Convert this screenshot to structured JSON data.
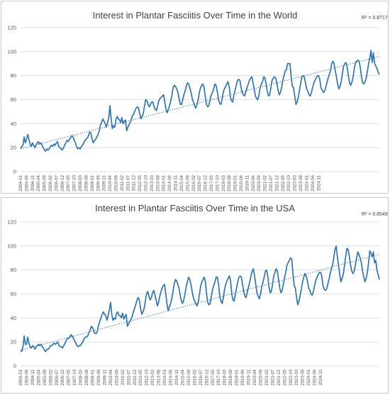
{
  "colors": {
    "series": "#2e75b6",
    "grid": "#d9d9d9",
    "text": "#595959"
  },
  "chart_data": [
    {
      "type": "line",
      "title": "Interest in Plantar Fasciitis Over Time in the World",
      "r2_label": "R² = 0.8717",
      "ylim": [
        0,
        120
      ],
      "yticks": [
        0,
        20,
        40,
        60,
        80,
        100,
        120
      ],
      "x_tick_labels": [
        "2004-01",
        "2004-06",
        "2004-11",
        "2005-04",
        "2005-09",
        "2006-02",
        "2006-07",
        "2006-12",
        "2007-05",
        "2007-10",
        "2008-03",
        "2008-08",
        "2009-01",
        "2009-06",
        "2009-11",
        "2010-04",
        "2010-09",
        "2011-02",
        "2011-07",
        "2011-12",
        "2012-05",
        "2012-10",
        "2013-03",
        "2013-08",
        "2014-01",
        "2014-06",
        "2014-11",
        "2015-04",
        "2015-09",
        "2016-02",
        "2016-07",
        "2016-12",
        "2017-05",
        "2017-10",
        "2018-03",
        "2018-08",
        "2019-01",
        "2019-06",
        "2019-11",
        "2020-04",
        "2020-09",
        "2021-02",
        "2021-07",
        "2021-12",
        "2022-05",
        "2022-10",
        "2023-03",
        "2023-08",
        "2024-01",
        "2024-06",
        "2024-11"
      ],
      "grid": true,
      "trendline": {
        "style": "dotted",
        "start": 19,
        "end": 96
      },
      "series": [
        {
          "x_start": "2004-01",
          "values": [
            19,
            21,
            22,
            29,
            24,
            27,
            31,
            27,
            23,
            21,
            24,
            22,
            20,
            22,
            24,
            25,
            23,
            24,
            22,
            20,
            18,
            17,
            19,
            18,
            19,
            21,
            22,
            21,
            23,
            22,
            24,
            25,
            21,
            20,
            19,
            18,
            20,
            22,
            24,
            26,
            25,
            27,
            28,
            30,
            29,
            26,
            24,
            21,
            19,
            20,
            19,
            21,
            22,
            24,
            26,
            27,
            28,
            30,
            33,
            32,
            27,
            24,
            26,
            27,
            29,
            31,
            34,
            39,
            41,
            44,
            42,
            40,
            37,
            41,
            45,
            55,
            44,
            36,
            38,
            37,
            43,
            46,
            44,
            43,
            41,
            45,
            40,
            42,
            43,
            34,
            37,
            39,
            41,
            44,
            47,
            48,
            51,
            53,
            54,
            53,
            48,
            44,
            46,
            49,
            55,
            60,
            59,
            56,
            54,
            56,
            58,
            58,
            54,
            52,
            51,
            55,
            59,
            61,
            62,
            63,
            64,
            58,
            52,
            49,
            52,
            55,
            59,
            64,
            70,
            72,
            71,
            69,
            66,
            61,
            56,
            56,
            60,
            64,
            67,
            71,
            74,
            73,
            70,
            66,
            61,
            58,
            55,
            53,
            56,
            60,
            66,
            70,
            72,
            73,
            70,
            62,
            56,
            54,
            55,
            60,
            64,
            66,
            69,
            73,
            72,
            67,
            60,
            57,
            56,
            60,
            66,
            69,
            71,
            73,
            75,
            71,
            62,
            59,
            58,
            64,
            68,
            72,
            76,
            77,
            76,
            70,
            66,
            64,
            63,
            67,
            70,
            73,
            76,
            78,
            79,
            74,
            69,
            63,
            61,
            60,
            64,
            70,
            73,
            75,
            79,
            78,
            73,
            67,
            63,
            64,
            70,
            76,
            78,
            79,
            78,
            74,
            68,
            64,
            66,
            70,
            76,
            80,
            84,
            85,
            90,
            90,
            90,
            79,
            71,
            70,
            63,
            56,
            58,
            62,
            68,
            74,
            79,
            80,
            79,
            74,
            69,
            67,
            64,
            63,
            66,
            70,
            74,
            76,
            78,
            80,
            80,
            77,
            70,
            68,
            66,
            67,
            70,
            74,
            78,
            81,
            84,
            90,
            92,
            90,
            84,
            79,
            73,
            69,
            71,
            75,
            82,
            88,
            90,
            91,
            87,
            80,
            74,
            72,
            75,
            79,
            86,
            91,
            92,
            93,
            92,
            87,
            79,
            74,
            73,
            75,
            78,
            84,
            90,
            95,
            101,
            91,
            99,
            90,
            88,
            86,
            83,
            81
          ]
        }
      ]
    },
    {
      "type": "line",
      "title": "Interest in Plantar Fasciitis Over Time in the USA",
      "r2_label": "R² = 0.8549",
      "ylim": [
        0,
        120
      ],
      "yticks": [
        0,
        20,
        40,
        60,
        80,
        100,
        120
      ],
      "x_tick_labels": [
        "2004-01",
        "2004-06",
        "2004-11",
        "2005-04",
        "2005-09",
        "2006-02",
        "2006-07",
        "2006-12",
        "2007-05",
        "2007-10",
        "2008-03",
        "2008-08",
        "2009-01",
        "2009-06",
        "2009-11",
        "2010-04",
        "2010-09",
        "2011-02",
        "2011-07",
        "2011-12",
        "2012-05",
        "2012-10",
        "2013-03",
        "2013-08",
        "2014-01",
        "2014-06",
        "2014-11",
        "2015-04",
        "2015-09",
        "2016-02",
        "2016-07",
        "2016-12",
        "2017-05",
        "2017-10",
        "2018-03",
        "2018-08",
        "2019-01",
        "2019-06",
        "2019-11",
        "2020-04",
        "2020-09",
        "2021-02",
        "2021-07",
        "2021-12",
        "2022-05",
        "2022-10",
        "2023-03",
        "2023-08",
        "2024-01",
        "2024-06",
        "2024-11"
      ],
      "grid": true,
      "trendline": {
        "style": "dotted",
        "start": 13,
        "end": 93
      },
      "series": [
        {
          "x_start": "2004-01",
          "values": [
            13,
            12,
            16,
            25,
            18,
            18,
            24,
            19,
            16,
            15,
            17,
            16,
            14,
            16,
            17,
            18,
            17,
            18,
            16,
            15,
            13,
            12,
            14,
            14,
            15,
            17,
            17,
            18,
            19,
            18,
            19,
            20,
            17,
            16,
            16,
            15,
            17,
            19,
            21,
            23,
            23,
            24,
            26,
            25,
            23,
            21,
            19,
            17,
            16,
            17,
            17,
            19,
            20,
            23,
            24,
            24,
            25,
            28,
            30,
            33,
            32,
            29,
            27,
            27,
            29,
            34,
            37,
            40,
            43,
            45,
            43,
            42,
            38,
            42,
            47,
            53,
            43,
            38,
            40,
            39,
            44,
            45,
            42,
            42,
            40,
            44,
            39,
            41,
            43,
            33,
            35,
            37,
            39,
            41,
            45,
            48,
            51,
            55,
            57,
            55,
            48,
            43,
            45,
            48,
            54,
            60,
            62,
            58,
            55,
            57,
            61,
            63,
            59,
            55,
            50,
            53,
            58,
            62,
            65,
            67,
            68,
            60,
            52,
            46,
            49,
            52,
            56,
            62,
            68,
            72,
            71,
            68,
            65,
            59,
            54,
            52,
            55,
            60,
            66,
            70,
            74,
            72,
            68,
            62,
            57,
            54,
            52,
            50,
            53,
            59,
            66,
            70,
            72,
            74,
            70,
            60,
            53,
            51,
            52,
            58,
            64,
            67,
            70,
            74,
            74,
            68,
            58,
            54,
            52,
            57,
            64,
            68,
            71,
            73,
            75,
            71,
            60,
            55,
            54,
            60,
            65,
            70,
            74,
            75,
            74,
            68,
            62,
            58,
            57,
            62,
            66,
            70,
            75,
            79,
            81,
            75,
            68,
            61,
            58,
            56,
            60,
            66,
            70,
            74,
            79,
            80,
            75,
            66,
            61,
            62,
            68,
            75,
            78,
            81,
            79,
            72,
            65,
            61,
            63,
            68,
            74,
            78,
            84,
            86,
            88,
            90,
            89,
            77,
            67,
            65,
            57,
            51,
            54,
            59,
            64,
            70,
            74,
            77,
            75,
            71,
            65,
            63,
            60,
            59,
            62,
            67,
            71,
            74,
            76,
            78,
            78,
            75,
            67,
            64,
            63,
            64,
            68,
            72,
            77,
            81,
            84,
            90,
            97,
            100,
            91,
            84,
            76,
            70,
            73,
            77,
            84,
            92,
            98,
            97,
            91,
            84,
            79,
            77,
            79,
            84,
            90,
            95,
            93,
            90,
            86,
            79,
            74,
            70,
            73,
            78,
            86,
            96,
            94,
            91,
            95,
            86,
            88,
            80,
            76,
            72
          ]
        }
      ]
    }
  ]
}
